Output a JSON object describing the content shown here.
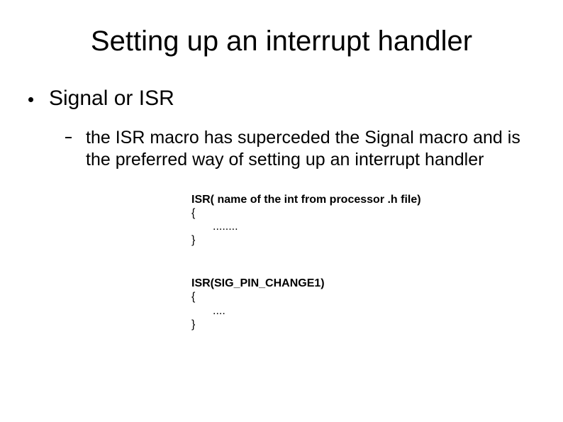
{
  "title": "Setting up an interrupt handler",
  "bullet1": "Signal or ISR",
  "bullet2": "the ISR macro has superceded the Signal macro and is the preferred way of setting up an interrupt handler",
  "code1": {
    "sig": "ISR( name of the int from processor .h file)",
    "open": "{",
    "body": "........",
    "close": "}"
  },
  "code2": {
    "sig": "ISR(SIG_PIN_CHANGE1)",
    "open": "{",
    "body": "....",
    "close": "}"
  },
  "colors": {
    "background": "#ffffff",
    "text": "#000000"
  },
  "typography": {
    "title_fontsize": 40,
    "bullet1_fontsize": 30,
    "bullet2_fontsize": 25,
    "code_fontsize": 16,
    "font_family": "Arial"
  }
}
